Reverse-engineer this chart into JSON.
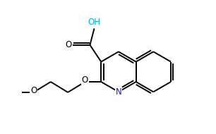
{
  "bg_color": "#ffffff",
  "bond_color": "#000000",
  "N_color": "#1a1acc",
  "OH_color": "#00aadd",
  "O_color": "#000000",
  "lw": 1.4,
  "doff": 0.048,
  "shrink": 0.07,
  "fs": 8.5,
  "xlim": [
    -1.6,
    2.0
  ],
  "ylim": [
    -1.3,
    1.5
  ]
}
